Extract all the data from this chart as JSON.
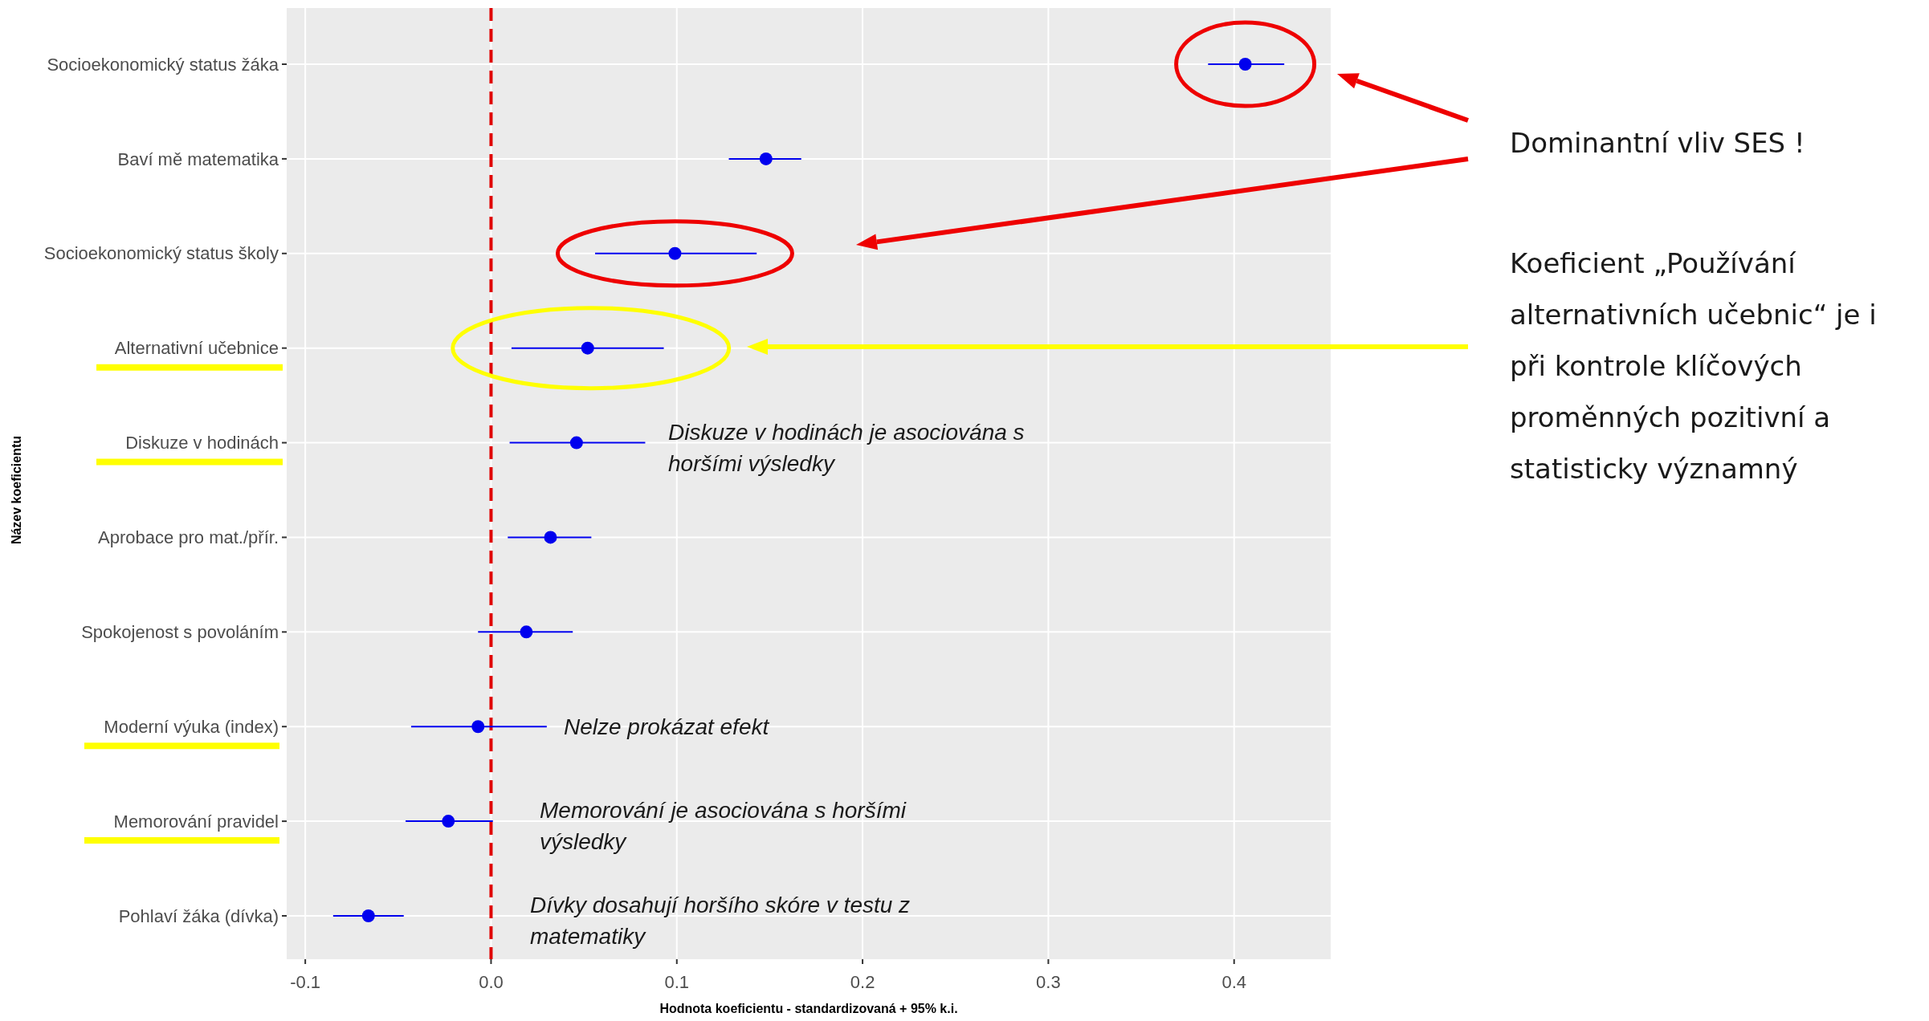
{
  "chart_data": {
    "type": "scatter",
    "orientation": "horizontal",
    "categories": [
      "Socioekonomický status žáka",
      "Baví mě matematika",
      "Socioekonomický status školy",
      "Alternativní učebnice",
      "Diskuze v hodinách",
      "Aprobace pro mat./přír.",
      "Spokojenost s povoláním",
      "Moderní výuka (index)",
      "Memorování pravidel",
      "Pohlaví žáka (dívka)"
    ],
    "series": [
      {
        "color": "#0000ee",
        "values": [
          0.406,
          0.148,
          0.099,
          0.052,
          0.046,
          0.032,
          0.019,
          -0.007,
          -0.023,
          -0.066
        ],
        "errors": [
          [
            0.386,
            0.427
          ],
          [
            0.128,
            0.167
          ],
          [
            0.056,
            0.143
          ],
          [
            0.011,
            0.093
          ],
          [
            0.01,
            0.083
          ],
          [
            0.009,
            0.054
          ],
          [
            -0.007,
            0.044
          ],
          [
            -0.043,
            0.03
          ],
          [
            -0.046,
            0.001
          ],
          [
            -0.085,
            -0.047
          ]
        ]
      }
    ],
    "xlim": [
      -0.11,
      0.452
    ],
    "xticks": [
      -0.1,
      {
        "value": 0,
        "label": "0.0"
      },
      0.1,
      0.2,
      0.3,
      0.4
    ],
    "xlabel": "Hodnota koeficientu - standardizovaná  + 95% k.i.",
    "ylabel": "Název  koeficientu",
    "grid": true,
    "marker": "circle",
    "ref_lines": [
      {
        "axis": "x",
        "value": 0,
        "color": "#e00000",
        "line_style": "dashed"
      }
    ],
    "annotations": [
      "Dominantní vliv SES !",
      "Koeficient „Používání alternativních učebnic“ je i při kontrole klíčových proměnných pozitivní a statisticky významný",
      "Diskuze v hodinách je asociována s horšími výsledky",
      "Nelze prokázat efekt",
      "Memorování je asociována s horšími výsledky",
      "Dívky dosahují horšího skóre v testu z matematiky"
    ]
  }
}
